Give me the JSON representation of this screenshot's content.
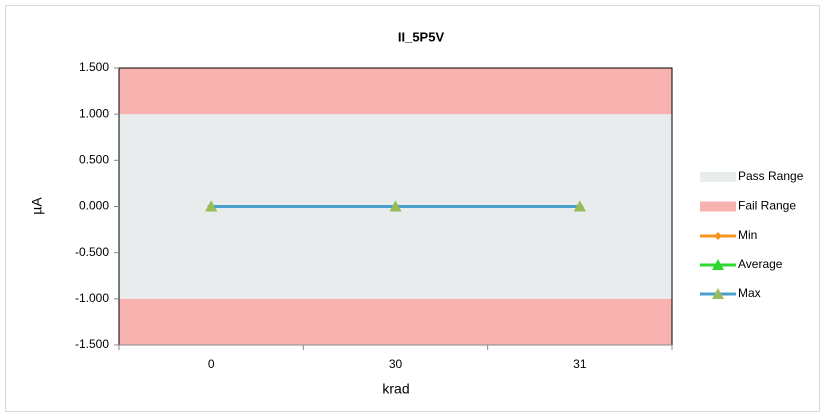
{
  "chart_data": {
    "type": "line",
    "title": "II_5P5V",
    "x_label": "krad",
    "y_label": "µA",
    "categories": [
      "0",
      "30",
      "31"
    ],
    "bands": [
      {
        "name": "Pass Range",
        "color": "#e9ecec",
        "ranges": [
          [
            -1,
            1
          ]
        ]
      },
      {
        "name": "Fail Range",
        "color": "#f8b3b1",
        "ranges": [
          [
            1,
            1.5
          ],
          [
            -1.5,
            -1
          ]
        ]
      }
    ],
    "series": [
      {
        "name": "Min",
        "color": "#f7941d",
        "marker": "diamond",
        "marker_color": "#f7941d",
        "values": [
          0,
          0,
          0
        ]
      },
      {
        "name": "Average",
        "color": "#2fd82f",
        "marker": "triangle",
        "marker_color": "#2fd82f",
        "values": [
          0,
          0,
          0
        ]
      },
      {
        "name": "Max",
        "color": "#4aa0cc",
        "marker": "triangle",
        "marker_color": "#9bbb59",
        "values": [
          0,
          0,
          0
        ]
      }
    ],
    "ylim": [
      -1.5,
      1.5
    ],
    "yticks": [
      {
        "value": -1.5,
        "label": "-1.500"
      },
      {
        "value": -1,
        "label": "-1.000"
      },
      {
        "value": -0.5,
        "label": "-0.500"
      },
      {
        "value": 0,
        "label": "0.000"
      },
      {
        "value": 0.5,
        "label": "0.500"
      },
      {
        "value": 1,
        "label": "1.000"
      },
      {
        "value": 1.5,
        "label": "1.500"
      }
    ],
    "legend": "right"
  }
}
